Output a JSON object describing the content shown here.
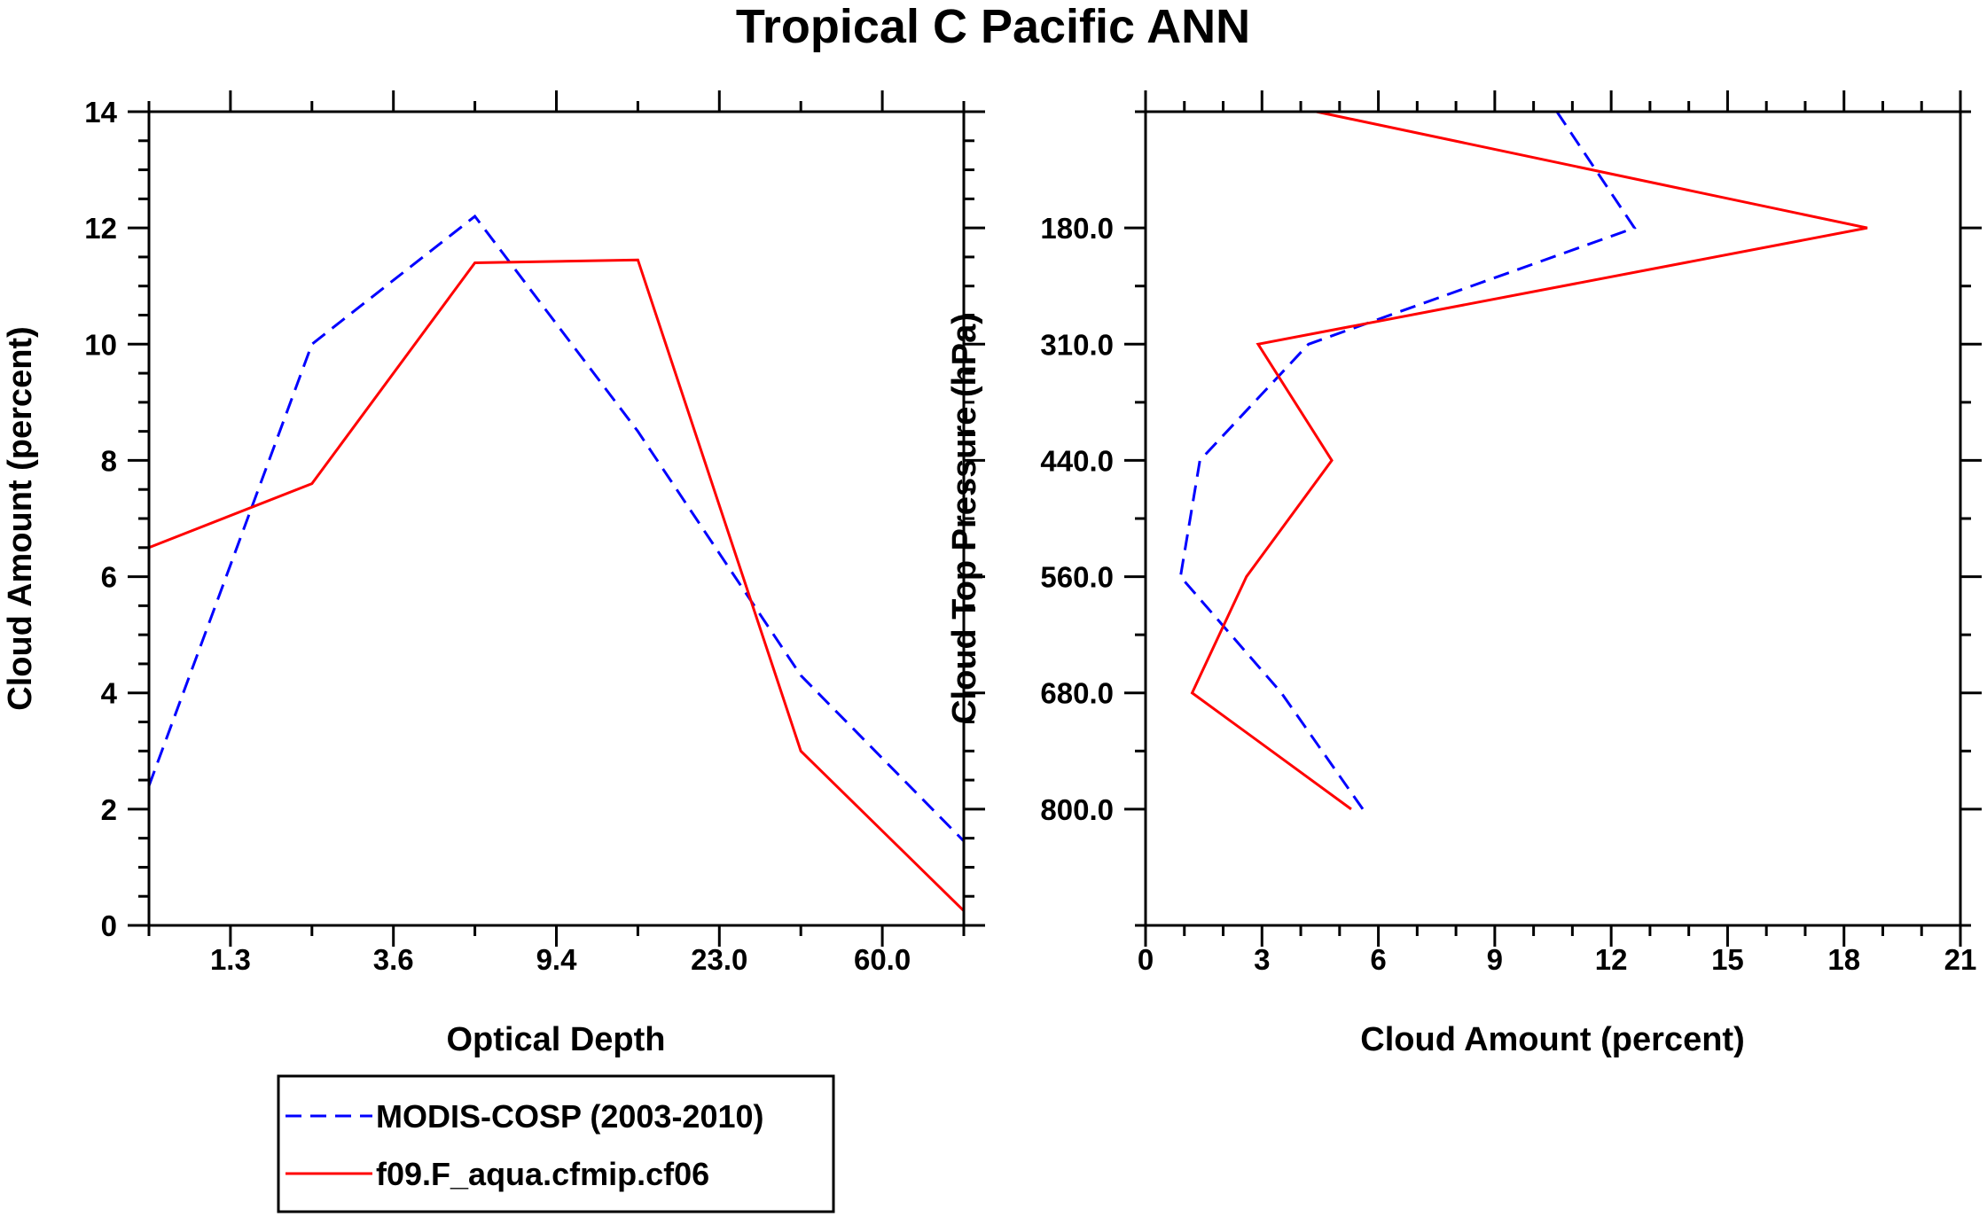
{
  "figure": {
    "title": "Tropical C Pacific ANN"
  },
  "legend": {
    "entries": [
      {
        "label": "MODIS-COSP (2003-2010)",
        "color": "#0000ff",
        "style": "dashed"
      },
      {
        "label": "f09.F_aqua.cfmip.cf06",
        "color": "#ff0000",
        "style": "solid"
      }
    ]
  },
  "chart_data": [
    {
      "type": "line",
      "xlabel": "Optical Depth",
      "ylabel": "Cloud Amount (percent)",
      "xlim": [
        0,
        10
      ],
      "ylim": [
        0,
        14
      ],
      "y_major_ticks": [
        0,
        2,
        4,
        6,
        8,
        10,
        12,
        14
      ],
      "y_minor_step": 0.5,
      "x_tick_positions": [
        1,
        3,
        5,
        7,
        9
      ],
      "x_tick_labels": [
        "1.3",
        "3.6",
        "9.4",
        "23.0",
        "60.0"
      ],
      "x_minor_positions": [
        0,
        2,
        4,
        6,
        8,
        10
      ],
      "series": [
        {
          "name": "MODIS-COSP (2003-2010)",
          "color": "#0000ff",
          "dash": true,
          "x": [
            0,
            2,
            4,
            6,
            8,
            10
          ],
          "y": [
            2.4,
            10.0,
            12.2,
            8.5,
            4.3,
            1.45
          ]
        },
        {
          "name": "f09.F_aqua.cfmip.cf06",
          "color": "#ff0000",
          "dash": false,
          "x": [
            0,
            2,
            4,
            6,
            8,
            10
          ],
          "y": [
            6.5,
            7.6,
            11.4,
            11.45,
            3.0,
            0.25
          ]
        }
      ]
    },
    {
      "type": "line",
      "xlabel": "Cloud Amount (percent)",
      "ylabel": "Cloud Top Pressure (hPa)",
      "xlim": [
        0,
        21
      ],
      "ylim": [
        0,
        7
      ],
      "x_major_ticks": [
        0,
        3,
        6,
        9,
        12,
        15,
        18,
        21
      ],
      "x_minor_step": 1,
      "y_tick_positions": [
        1,
        2,
        3,
        4,
        5,
        6
      ],
      "y_tick_labels": [
        "180.0",
        "310.0",
        "440.0",
        "560.0",
        "680.0",
        "800.0"
      ],
      "y_minor_positions": [
        0,
        1.5,
        2.5,
        3.5,
        4.5,
        5.5,
        7
      ],
      "series": [
        {
          "name": "MODIS-COSP (2003-2010)",
          "color": "#0000ff",
          "dash": true,
          "x": [
            10.6,
            12.6,
            4.2,
            1.4,
            0.9,
            3.5,
            5.6
          ],
          "y": [
            0.0,
            1.0,
            2.0,
            3.0,
            4.0,
            5.0,
            6.0
          ]
        },
        {
          "name": "f09.F_aqua.cfmip.cf06",
          "color": "#ff0000",
          "dash": false,
          "x": [
            4.4,
            18.6,
            2.9,
            4.8,
            2.6,
            1.2,
            5.3
          ],
          "y": [
            0.0,
            1.0,
            2.0,
            3.0,
            4.0,
            5.0,
            6.0
          ]
        }
      ]
    }
  ]
}
